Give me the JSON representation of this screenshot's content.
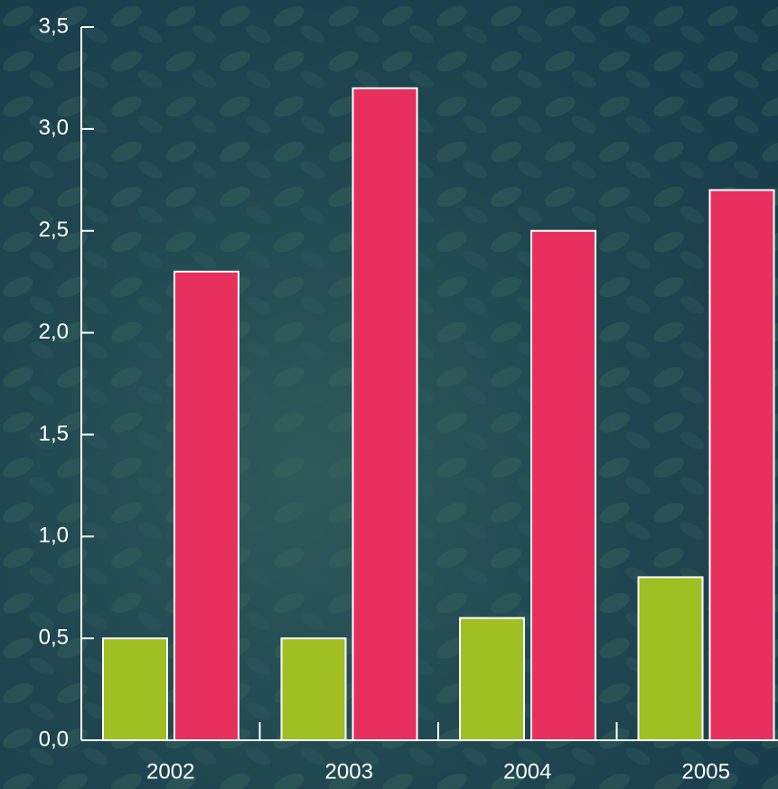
{
  "chart_data": {
    "type": "bar",
    "categories": [
      "2002",
      "2003",
      "2004",
      "2005"
    ],
    "series": [
      {
        "color": "#a0bf22",
        "values": [
          0.5,
          0.5,
          0.6,
          0.8
        ]
      },
      {
        "color": "#e8305e",
        "values": [
          2.3,
          3.2,
          2.5,
          2.7
        ]
      }
    ],
    "ylim": [
      0,
      3.5
    ],
    "yticks": [
      {
        "value": 0,
        "label": "0,0"
      },
      {
        "value": 0.5,
        "label": "0,5"
      },
      {
        "value": 1,
        "label": "1,0"
      },
      {
        "value": 1.5,
        "label": "1,5"
      },
      {
        "value": 2,
        "label": "2,0"
      },
      {
        "value": 2.5,
        "label": "2,5"
      },
      {
        "value": 3,
        "label": "3,0"
      },
      {
        "value": 3.5,
        "label": "3,5"
      }
    ]
  }
}
